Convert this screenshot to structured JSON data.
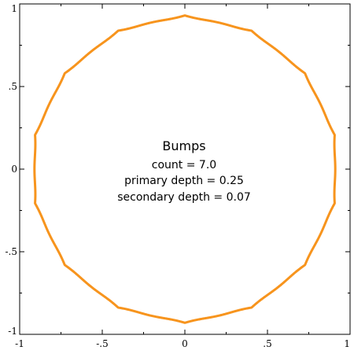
{
  "chart_data": {
    "type": "line",
    "title": "",
    "xlabel": "",
    "ylabel": "",
    "xlim": [
      -1,
      1
    ],
    "ylim": [
      -1,
      1
    ],
    "grid": false,
    "x_ticks": [
      {
        "value": -1,
        "label": "-1"
      },
      {
        "value": -0.5,
        "label": "-.5"
      },
      {
        "value": 0,
        "label": "0"
      },
      {
        "value": 0.5,
        "label": ".5"
      },
      {
        "value": 1,
        "label": "1"
      }
    ],
    "y_ticks": [
      {
        "value": -1,
        "label": "-1"
      },
      {
        "value": -0.5,
        "label": "-.5"
      },
      {
        "value": 0,
        "label": "0"
      },
      {
        "value": 0.5,
        "label": ".5"
      },
      {
        "value": 1,
        "label": "1"
      }
    ],
    "series": [
      {
        "kind": "polar-curve",
        "color": "#f7941d",
        "params": {
          "count": 7.0,
          "primary_depth": 0.25,
          "secondary_depth": 0.07,
          "base_radius": 0.96
        }
      }
    ],
    "annotation": {
      "title": "Bumps",
      "lines": [
        "count = 7.0",
        "primary depth = 0.25",
        "secondary depth = 0.07"
      ]
    }
  }
}
